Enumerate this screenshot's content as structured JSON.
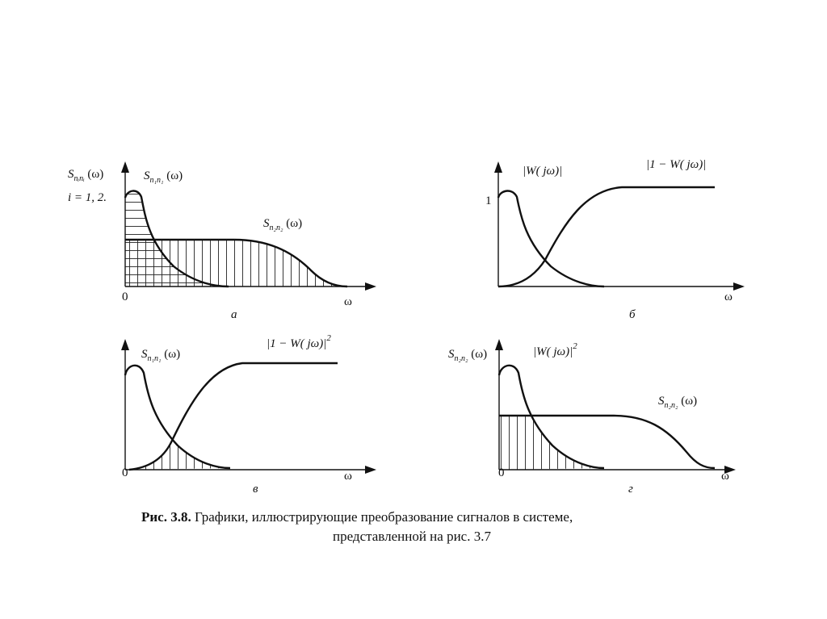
{
  "colors": {
    "ink": "#111111",
    "background": "#ffffff"
  },
  "panels": {
    "a": {
      "ylabel_main": "S",
      "ylabel_sub": "nᵢnᵢ",
      "ylabel_arg": " (ω)",
      "ylabel_note": "i = 1, 2.",
      "curve1_main": "S",
      "curve1_sub": "n₁n₁",
      "curve1_arg": " (ω)",
      "curve2_main": "S",
      "curve2_sub": "n₂n₂",
      "curve2_arg": " (ω)",
      "origin": "0",
      "xlabel": "ω",
      "letter": "а"
    },
    "b": {
      "ytick": "1",
      "curve1": "|W( jω)|",
      "curve2": "|1 − W( jω)|",
      "xlabel": "ω",
      "letter": "б"
    },
    "v": {
      "curve1_main": "S",
      "curve1_sub": "n₁n₁",
      "curve1_arg": " (ω)",
      "curve2": "|1 − W( jω)|",
      "curve2_exp": "2",
      "origin": "0",
      "xlabel": "ω",
      "letter": "в"
    },
    "g": {
      "ylabel_main": "S",
      "ylabel_sub": "n₂n₂",
      "ylabel_arg": " (ω)",
      "curve1": "|W( jω)|",
      "curve1_exp": "2",
      "curve2_main": "S",
      "curve2_sub": "n₂n₂",
      "curve2_arg": " (ω)",
      "origin": "0",
      "xlabel": "ω",
      "letter": "г"
    }
  },
  "caption": {
    "label": "Рис. 3.8.",
    "line1": " Графики, иллюстрирующие преобразование сигналов в системе,",
    "line2": "представленной на рис. 3.7"
  }
}
